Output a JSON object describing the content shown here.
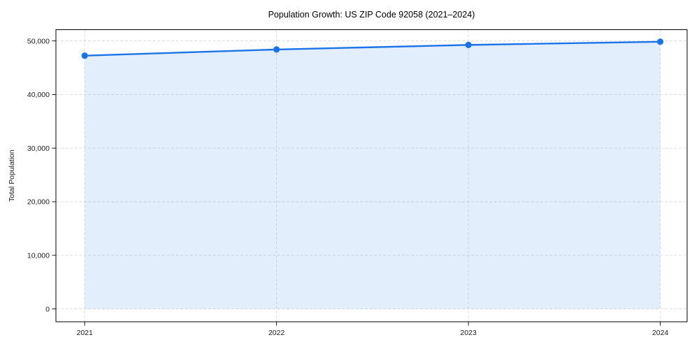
{
  "chart_data": {
    "type": "line",
    "title": "Population Growth: US ZIP Code 92058 (2021–2024)",
    "xlabel": "",
    "ylabel": "Total Population",
    "x": [
      2021,
      2022,
      2023,
      2024
    ],
    "x_tick_labels": [
      "2021",
      "2022",
      "2023",
      "2024"
    ],
    "series": [
      {
        "name": "Total Population",
        "values": [
          47250,
          48400,
          49250,
          49850
        ]
      }
    ],
    "y_ticks": [
      0,
      10000,
      20000,
      30000,
      40000,
      50000
    ],
    "y_tick_labels": [
      "0",
      "10,000",
      "20,000",
      "30,000",
      "40,000",
      "50,000"
    ],
    "xlim": [
      2020.85,
      2024.14
    ],
    "ylim": [
      -2400,
      52100
    ],
    "grid": true,
    "grid_style": "dashed",
    "area_fill": true,
    "marker": "circle",
    "legend": "none",
    "style": {
      "line_color": "#1a73e8",
      "marker_color": "#1a73e8",
      "area_color": "#1a73e8",
      "area_opacity": 0.12,
      "grid_color": "#d5d5d5",
      "spine_color": "#000000",
      "text_color": "#1a1a1a"
    }
  }
}
